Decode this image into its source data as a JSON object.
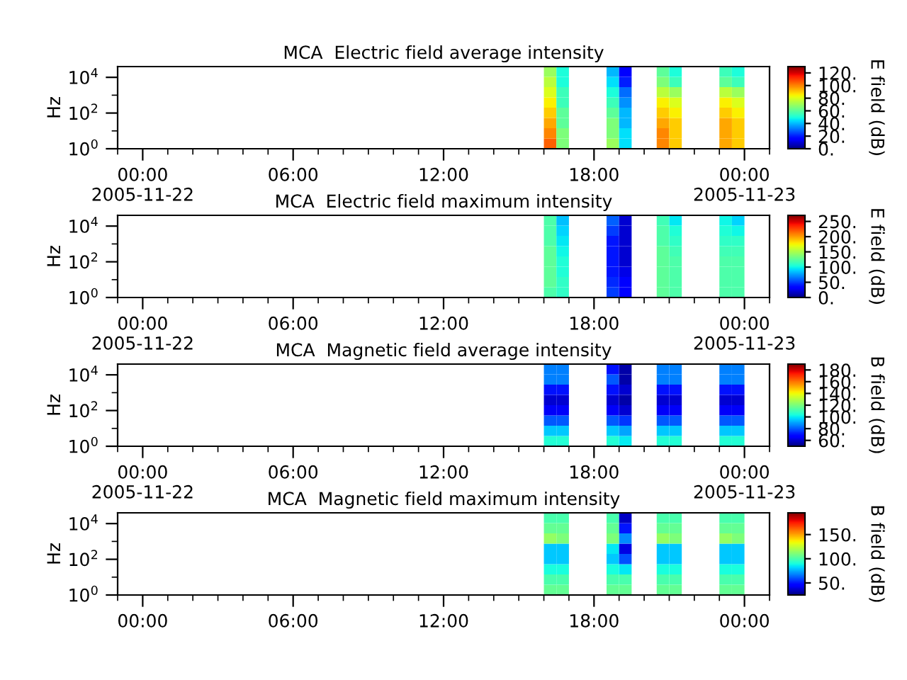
{
  "chart_data": [
    {
      "type": "heatmap",
      "title": "MCA  Electric field average intensity",
      "ylabel": "Hz",
      "clabel": "E field (dB)",
      "cells": [
        [
          null,
          null,
          null,
          null,
          null,
          null,
          null,
          null,
          null,
          null,
          null,
          null,
          null,
          null,
          null,
          null,
          null,
          null,
          null,
          null,
          null,
          null,
          null,
          null,
          null,
          null,
          null,
          null,
          null,
          null,
          null,
          null,
          null,
          null,
          70,
          50,
          null,
          null,
          null,
          40,
          15,
          null,
          null,
          60,
          50,
          null,
          null,
          null,
          55,
          50,
          null,
          null
        ],
        [
          null,
          null,
          null,
          null,
          null,
          null,
          null,
          null,
          null,
          null,
          null,
          null,
          null,
          null,
          null,
          null,
          null,
          null,
          null,
          null,
          null,
          null,
          null,
          null,
          null,
          null,
          null,
          null,
          null,
          null,
          null,
          null,
          null,
          null,
          75,
          50,
          null,
          null,
          null,
          45,
          20,
          null,
          null,
          65,
          55,
          null,
          null,
          null,
          60,
          55,
          null,
          null
        ],
        [
          null,
          null,
          null,
          null,
          null,
          null,
          null,
          null,
          null,
          null,
          null,
          null,
          null,
          null,
          null,
          null,
          null,
          null,
          null,
          null,
          null,
          null,
          null,
          null,
          null,
          null,
          null,
          null,
          null,
          null,
          null,
          null,
          null,
          null,
          80,
          55,
          null,
          null,
          null,
          50,
          30,
          null,
          null,
          75,
          70,
          null,
          null,
          null,
          75,
          70,
          null,
          null
        ],
        [
          null,
          null,
          null,
          null,
          null,
          null,
          null,
          null,
          null,
          null,
          null,
          null,
          null,
          null,
          null,
          null,
          null,
          null,
          null,
          null,
          null,
          null,
          null,
          null,
          null,
          null,
          null,
          null,
          null,
          null,
          null,
          null,
          null,
          null,
          85,
          55,
          null,
          null,
          null,
          55,
          35,
          null,
          null,
          85,
          80,
          null,
          null,
          null,
          85,
          80,
          null,
          null
        ],
        [
          null,
          null,
          null,
          null,
          null,
          null,
          null,
          null,
          null,
          null,
          null,
          null,
          null,
          null,
          null,
          null,
          null,
          null,
          null,
          null,
          null,
          null,
          null,
          null,
          null,
          null,
          null,
          null,
          null,
          null,
          null,
          null,
          null,
          null,
          90,
          60,
          null,
          null,
          null,
          60,
          40,
          null,
          null,
          90,
          85,
          null,
          null,
          null,
          90,
          85,
          null,
          null
        ],
        [
          null,
          null,
          null,
          null,
          null,
          null,
          null,
          null,
          null,
          null,
          null,
          null,
          null,
          null,
          null,
          null,
          null,
          null,
          null,
          null,
          null,
          null,
          null,
          null,
          null,
          null,
          null,
          null,
          null,
          null,
          null,
          null,
          null,
          null,
          95,
          60,
          null,
          null,
          null,
          65,
          40,
          null,
          null,
          95,
          90,
          null,
          null,
          null,
          95,
          90,
          null,
          null
        ],
        [
          null,
          null,
          null,
          null,
          null,
          null,
          null,
          null,
          null,
          null,
          null,
          null,
          null,
          null,
          null,
          null,
          null,
          null,
          null,
          null,
          null,
          null,
          null,
          null,
          null,
          null,
          null,
          null,
          null,
          null,
          null,
          null,
          null,
          null,
          100,
          65,
          null,
          null,
          null,
          65,
          45,
          null,
          null,
          100,
          90,
          null,
          null,
          null,
          95,
          90,
          null,
          null
        ],
        [
          null,
          null,
          null,
          null,
          null,
          null,
          null,
          null,
          null,
          null,
          null,
          null,
          null,
          null,
          null,
          null,
          null,
          null,
          null,
          null,
          null,
          null,
          null,
          null,
          null,
          null,
          null,
          null,
          null,
          null,
          null,
          null,
          null,
          null,
          105,
          65,
          null,
          null,
          null,
          70,
          45,
          null,
          null,
          100,
          90,
          null,
          null,
          null,
          95,
          90,
          null,
          null
        ]
      ],
      "clim": [
        0,
        130
      ],
      "cticks": [
        {
          "value": 0,
          "label": "0."
        },
        {
          "value": 20,
          "label": "20."
        },
        {
          "value": 40,
          "label": "40."
        },
        {
          "value": 60,
          "label": "60."
        },
        {
          "value": 80,
          "label": "80."
        },
        {
          "value": 100,
          "label": "100."
        },
        {
          "value": 120,
          "label": "120."
        }
      ],
      "xlim": [
        "2005-11-21T23:00",
        "2005-11-23T01:00"
      ],
      "log": "y",
      "ylim": [
        1,
        40000
      ],
      "yticks": [
        {
          "value": 1,
          "label": "10$^{0}$"
        },
        {
          "value": 10,
          "label": null
        },
        {
          "value": 100,
          "label": "10$^{2}$"
        },
        {
          "value": 1000,
          "label": null
        },
        {
          "value": 10000,
          "label": "10$^{4}$"
        }
      ],
      "xticks": [
        {
          "value": "2005-11-22T00:00",
          "label": "00:00\n2005-11-22"
        },
        {
          "value": "2005-11-22T06:00",
          "label": "06:00"
        },
        {
          "value": "2005-11-22T12:00",
          "label": "12:00"
        },
        {
          "value": "2005-11-22T18:00",
          "label": "18:00"
        },
        {
          "value": "2005-11-23T00:00",
          "label": "00:00\n2005-11-23"
        }
      ]
    },
    {
      "type": "heatmap",
      "title": "MCA  Electric field maximum intensity",
      "ylabel": "Hz",
      "clabel": "E field (dB)",
      "cells": [
        [
          null,
          null,
          null,
          null,
          null,
          null,
          null,
          null,
          null,
          null,
          null,
          null,
          null,
          null,
          null,
          null,
          null,
          null,
          null,
          null,
          null,
          null,
          null,
          null,
          null,
          null,
          null,
          null,
          null,
          null,
          null,
          null,
          null,
          null,
          120,
          85,
          null,
          null,
          null,
          60,
          20,
          null,
          null,
          115,
          95,
          null,
          null,
          null,
          100,
          90,
          null,
          null
        ],
        [
          null,
          null,
          null,
          null,
          null,
          null,
          null,
          null,
          null,
          null,
          null,
          null,
          null,
          null,
          null,
          null,
          null,
          null,
          null,
          null,
          null,
          null,
          null,
          null,
          null,
          null,
          null,
          null,
          null,
          null,
          null,
          null,
          null,
          null,
          120,
          90,
          null,
          null,
          null,
          50,
          20,
          null,
          null,
          120,
          105,
          null,
          null,
          null,
          105,
          100,
          null,
          null
        ],
        [
          null,
          null,
          null,
          null,
          null,
          null,
          null,
          null,
          null,
          null,
          null,
          null,
          null,
          null,
          null,
          null,
          null,
          null,
          null,
          null,
          null,
          null,
          null,
          null,
          null,
          null,
          null,
          null,
          null,
          null,
          null,
          null,
          null,
          null,
          120,
          95,
          null,
          null,
          null,
          40,
          20,
          null,
          null,
          120,
          110,
          null,
          null,
          null,
          110,
          110,
          null,
          null
        ],
        [
          null,
          null,
          null,
          null,
          null,
          null,
          null,
          null,
          null,
          null,
          null,
          null,
          null,
          null,
          null,
          null,
          null,
          null,
          null,
          null,
          null,
          null,
          null,
          null,
          null,
          null,
          null,
          null,
          null,
          null,
          null,
          null,
          null,
          null,
          125,
          100,
          null,
          null,
          null,
          40,
          20,
          null,
          null,
          125,
          115,
          null,
          null,
          null,
          115,
          115,
          null,
          null
        ],
        [
          null,
          null,
          null,
          null,
          null,
          null,
          null,
          null,
          null,
          null,
          null,
          null,
          null,
          null,
          null,
          null,
          null,
          null,
          null,
          null,
          null,
          null,
          null,
          null,
          null,
          null,
          null,
          null,
          null,
          null,
          null,
          null,
          null,
          null,
          125,
          105,
          null,
          null,
          null,
          40,
          20,
          null,
          null,
          125,
          120,
          null,
          null,
          null,
          120,
          120,
          null,
          null
        ],
        [
          null,
          null,
          null,
          null,
          null,
          null,
          null,
          null,
          null,
          null,
          null,
          null,
          null,
          null,
          null,
          null,
          null,
          null,
          null,
          null,
          null,
          null,
          null,
          null,
          null,
          null,
          null,
          null,
          null,
          null,
          null,
          null,
          null,
          null,
          125,
          105,
          null,
          null,
          null,
          40,
          25,
          null,
          null,
          125,
          120,
          null,
          null,
          null,
          120,
          120,
          null,
          null
        ],
        [
          null,
          null,
          null,
          null,
          null,
          null,
          null,
          null,
          null,
          null,
          null,
          null,
          null,
          null,
          null,
          null,
          null,
          null,
          null,
          null,
          null,
          null,
          null,
          null,
          null,
          null,
          null,
          null,
          null,
          null,
          null,
          null,
          null,
          null,
          125,
          110,
          null,
          null,
          null,
          45,
          30,
          null,
          null,
          125,
          120,
          null,
          null,
          null,
          120,
          120,
          null,
          null
        ],
        [
          null,
          null,
          null,
          null,
          null,
          null,
          null,
          null,
          null,
          null,
          null,
          null,
          null,
          null,
          null,
          null,
          null,
          null,
          null,
          null,
          null,
          null,
          null,
          null,
          null,
          null,
          null,
          null,
          null,
          null,
          null,
          null,
          null,
          null,
          120,
          110,
          null,
          null,
          null,
          50,
          30,
          null,
          null,
          125,
          120,
          null,
          null,
          null,
          120,
          120,
          null,
          null
        ]
      ],
      "clim": [
        0,
        270
      ],
      "cticks": [
        {
          "value": 0,
          "label": "0."
        },
        {
          "value": 50,
          "label": "50."
        },
        {
          "value": 100,
          "label": "100."
        },
        {
          "value": 150,
          "label": "150."
        },
        {
          "value": 200,
          "label": "200."
        },
        {
          "value": 250,
          "label": "250."
        }
      ],
      "xlim": [
        "2005-11-21T23:00",
        "2005-11-23T01:00"
      ],
      "log": "y",
      "ylim": [
        1,
        40000
      ],
      "yticks": [
        {
          "value": 1,
          "label": "10$^{0}$"
        },
        {
          "value": 10,
          "label": null
        },
        {
          "value": 100,
          "label": "10$^{2}$"
        },
        {
          "value": 1000,
          "label": null
        },
        {
          "value": 10000,
          "label": "10$^{4}$"
        }
      ],
      "xticks": [
        {
          "value": "2005-11-22T00:00",
          "label": "00:00\n2005-11-22"
        },
        {
          "value": "2005-11-22T06:00",
          "label": "06:00"
        },
        {
          "value": "2005-11-22T12:00",
          "label": "12:00"
        },
        {
          "value": "2005-11-22T18:00",
          "label": "18:00"
        },
        {
          "value": "2005-11-23T00:00",
          "label": "00:00\n2005-11-23"
        }
      ]
    },
    {
      "type": "heatmap",
      "title": "MCA  Magnetic field average intensity",
      "ylabel": "Hz",
      "clabel": "B field (dB)",
      "cells": [
        [
          null,
          null,
          null,
          null,
          null,
          null,
          null,
          null,
          null,
          null,
          null,
          null,
          null,
          null,
          null,
          null,
          null,
          null,
          null,
          null,
          null,
          null,
          null,
          null,
          null,
          null,
          null,
          null,
          null,
          null,
          null,
          null,
          null,
          null,
          85,
          85,
          null,
          null,
          null,
          70,
          55,
          null,
          null,
          85,
          85,
          null,
          null,
          null,
          85,
          85,
          null,
          null
        ],
        [
          null,
          null,
          null,
          null,
          null,
          null,
          null,
          null,
          null,
          null,
          null,
          null,
          null,
          null,
          null,
          null,
          null,
          null,
          null,
          null,
          null,
          null,
          null,
          null,
          null,
          null,
          null,
          null,
          null,
          null,
          null,
          null,
          null,
          null,
          85,
          85,
          null,
          null,
          null,
          80,
          55,
          null,
          null,
          85,
          85,
          null,
          null,
          null,
          85,
          85,
          null,
          null
        ],
        [
          null,
          null,
          null,
          null,
          null,
          null,
          null,
          null,
          null,
          null,
          null,
          null,
          null,
          null,
          null,
          null,
          null,
          null,
          null,
          null,
          null,
          null,
          null,
          null,
          null,
          null,
          null,
          null,
          null,
          null,
          null,
          null,
          null,
          null,
          70,
          70,
          null,
          null,
          null,
          70,
          60,
          null,
          null,
          70,
          70,
          null,
          null,
          null,
          70,
          70,
          null,
          null
        ],
        [
          null,
          null,
          null,
          null,
          null,
          null,
          null,
          null,
          null,
          null,
          null,
          null,
          null,
          null,
          null,
          null,
          null,
          null,
          null,
          null,
          null,
          null,
          null,
          null,
          null,
          null,
          null,
          null,
          null,
          null,
          null,
          null,
          null,
          null,
          60,
          60,
          null,
          null,
          null,
          60,
          55,
          null,
          null,
          60,
          60,
          null,
          null,
          null,
          60,
          60,
          null,
          null
        ],
        [
          null,
          null,
          null,
          null,
          null,
          null,
          null,
          null,
          null,
          null,
          null,
          null,
          null,
          null,
          null,
          null,
          null,
          null,
          null,
          null,
          null,
          null,
          null,
          null,
          null,
          null,
          null,
          null,
          null,
          null,
          null,
          null,
          null,
          null,
          65,
          65,
          null,
          null,
          null,
          65,
          60,
          null,
          null,
          65,
          65,
          null,
          null,
          null,
          65,
          65,
          null,
          null
        ],
        [
          null,
          null,
          null,
          null,
          null,
          null,
          null,
          null,
          null,
          null,
          null,
          null,
          null,
          null,
          null,
          null,
          null,
          null,
          null,
          null,
          null,
          null,
          null,
          null,
          null,
          null,
          null,
          null,
          null,
          null,
          null,
          null,
          null,
          null,
          80,
          80,
          null,
          null,
          null,
          80,
          75,
          null,
          null,
          80,
          80,
          null,
          null,
          null,
          80,
          80,
          null,
          null
        ],
        [
          null,
          null,
          null,
          null,
          null,
          null,
          null,
          null,
          null,
          null,
          null,
          null,
          null,
          null,
          null,
          null,
          null,
          null,
          null,
          null,
          null,
          null,
          null,
          null,
          null,
          null,
          null,
          null,
          null,
          null,
          null,
          null,
          null,
          null,
          95,
          95,
          null,
          null,
          null,
          95,
          90,
          null,
          null,
          95,
          95,
          null,
          null,
          null,
          95,
          95,
          null,
          null
        ],
        [
          null,
          null,
          null,
          null,
          null,
          null,
          null,
          null,
          null,
          null,
          null,
          null,
          null,
          null,
          null,
          null,
          null,
          null,
          null,
          null,
          null,
          null,
          null,
          null,
          null,
          null,
          null,
          null,
          null,
          null,
          null,
          null,
          null,
          null,
          105,
          105,
          null,
          null,
          null,
          105,
          100,
          null,
          null,
          105,
          105,
          null,
          null,
          null,
          105,
          105,
          null,
          null
        ]
      ],
      "clim": [
        50,
        190
      ],
      "cticks": [
        {
          "value": 60,
          "label": "60."
        },
        {
          "value": 80,
          "label": "80."
        },
        {
          "value": 100,
          "label": "100."
        },
        {
          "value": 120,
          "label": "120."
        },
        {
          "value": 140,
          "label": "140."
        },
        {
          "value": 160,
          "label": "160."
        },
        {
          "value": 180,
          "label": "180."
        }
      ],
      "xlim": [
        "2005-11-21T23:00",
        "2005-11-23T01:00"
      ],
      "log": "y",
      "ylim": [
        1,
        40000
      ],
      "yticks": [
        {
          "value": 1,
          "label": "10$^{0}$"
        },
        {
          "value": 10,
          "label": null
        },
        {
          "value": 100,
          "label": "10$^{2}$"
        },
        {
          "value": 1000,
          "label": null
        },
        {
          "value": 10000,
          "label": "10$^{4}$"
        }
      ],
      "xticks": [
        {
          "value": "2005-11-22T00:00",
          "label": "00:00\n2005-11-22"
        },
        {
          "value": "2005-11-22T06:00",
          "label": "06:00"
        },
        {
          "value": "2005-11-22T12:00",
          "label": "12:00"
        },
        {
          "value": "2005-11-22T18:00",
          "label": "18:00"
        },
        {
          "value": "2005-11-23T00:00",
          "label": "00:00\n2005-11-23"
        }
      ]
    },
    {
      "type": "heatmap",
      "title": "MCA  Magnetic field maximum intensity",
      "ylabel": "Hz",
      "clabel": "B field (dB)",
      "cells": [
        [
          null,
          null,
          null,
          null,
          null,
          null,
          null,
          null,
          null,
          null,
          null,
          null,
          null,
          null,
          null,
          null,
          null,
          null,
          null,
          null,
          null,
          null,
          null,
          null,
          null,
          null,
          null,
          null,
          null,
          null,
          null,
          null,
          null,
          null,
          100,
          100,
          null,
          null,
          null,
          100,
          35,
          null,
          null,
          100,
          100,
          null,
          null,
          null,
          100,
          100,
          null,
          null
        ],
        [
          null,
          null,
          null,
          null,
          null,
          null,
          null,
          null,
          null,
          null,
          null,
          null,
          null,
          null,
          null,
          null,
          null,
          null,
          null,
          null,
          null,
          null,
          null,
          null,
          null,
          null,
          null,
          null,
          null,
          null,
          null,
          null,
          null,
          null,
          105,
          105,
          null,
          null,
          null,
          105,
          50,
          null,
          null,
          105,
          105,
          null,
          null,
          null,
          105,
          105,
          null,
          null
        ],
        [
          null,
          null,
          null,
          null,
          null,
          null,
          null,
          null,
          null,
          null,
          null,
          null,
          null,
          null,
          null,
          null,
          null,
          null,
          null,
          null,
          null,
          null,
          null,
          null,
          null,
          null,
          null,
          null,
          null,
          null,
          null,
          null,
          null,
          null,
          115,
          110,
          null,
          null,
          null,
          110,
          70,
          null,
          null,
          115,
          110,
          null,
          null,
          null,
          115,
          110,
          null,
          null
        ],
        [
          null,
          null,
          null,
          null,
          null,
          null,
          null,
          null,
          null,
          null,
          null,
          null,
          null,
          null,
          null,
          null,
          null,
          null,
          null,
          null,
          null,
          null,
          null,
          null,
          null,
          null,
          null,
          null,
          null,
          null,
          null,
          null,
          null,
          null,
          80,
          80,
          null,
          null,
          null,
          85,
          40,
          null,
          null,
          80,
          80,
          null,
          null,
          null,
          80,
          80,
          null,
          null
        ],
        [
          null,
          null,
          null,
          null,
          null,
          null,
          null,
          null,
          null,
          null,
          null,
          null,
          null,
          null,
          null,
          null,
          null,
          null,
          null,
          null,
          null,
          null,
          null,
          null,
          null,
          null,
          null,
          null,
          null,
          null,
          null,
          null,
          null,
          null,
          80,
          80,
          null,
          null,
          null,
          80,
          60,
          null,
          null,
          80,
          80,
          null,
          null,
          null,
          80,
          80,
          null,
          null
        ],
        [
          null,
          null,
          null,
          null,
          null,
          null,
          null,
          null,
          null,
          null,
          null,
          null,
          null,
          null,
          null,
          null,
          null,
          null,
          null,
          null,
          null,
          null,
          null,
          null,
          null,
          null,
          null,
          null,
          null,
          null,
          null,
          null,
          null,
          null,
          90,
          90,
          null,
          null,
          null,
          90,
          85,
          null,
          null,
          90,
          90,
          null,
          null,
          null,
          90,
          90,
          null,
          null
        ],
        [
          null,
          null,
          null,
          null,
          null,
          null,
          null,
          null,
          null,
          null,
          null,
          null,
          null,
          null,
          null,
          null,
          null,
          null,
          null,
          null,
          null,
          null,
          null,
          null,
          null,
          null,
          null,
          null,
          null,
          null,
          null,
          null,
          null,
          null,
          100,
          100,
          null,
          null,
          null,
          100,
          100,
          null,
          null,
          100,
          100,
          null,
          null,
          null,
          100,
          100,
          null,
          null
        ],
        [
          null,
          null,
          null,
          null,
          null,
          null,
          null,
          null,
          null,
          null,
          null,
          null,
          null,
          null,
          null,
          null,
          null,
          null,
          null,
          null,
          null,
          null,
          null,
          null,
          null,
          null,
          null,
          null,
          null,
          null,
          null,
          null,
          null,
          null,
          105,
          105,
          null,
          null,
          null,
          105,
          105,
          null,
          null,
          105,
          105,
          null,
          null,
          null,
          105,
          105,
          null,
          null
        ]
      ],
      "clim": [
        25,
        195
      ],
      "cticks": [
        {
          "value": 50,
          "label": "50."
        },
        {
          "value": 100,
          "label": "100."
        },
        {
          "value": 150,
          "label": "150."
        }
      ],
      "xlim": [
        "2005-11-21T23:00",
        "2005-11-23T01:00"
      ],
      "log": "y",
      "ylim": [
        1,
        40000
      ],
      "yticks": [
        {
          "value": 1,
          "label": "10$^{0}$"
        },
        {
          "value": 10,
          "label": null
        },
        {
          "value": 100,
          "label": "10$^{2}$"
        },
        {
          "value": 1000,
          "label": null
        },
        {
          "value": 10000,
          "label": "10$^{4}$"
        }
      ],
      "xticks": [
        {
          "value": "2005-11-22T00:00",
          "label": "00:00"
        },
        {
          "value": "2005-11-22T06:00",
          "label": "06:00"
        },
        {
          "value": "2005-11-22T12:00",
          "label": "12:00"
        },
        {
          "value": "2005-11-22T18:00",
          "label": "18:00"
        },
        {
          "value": "2005-11-23T00:00",
          "label": "00:00"
        }
      ]
    }
  ]
}
